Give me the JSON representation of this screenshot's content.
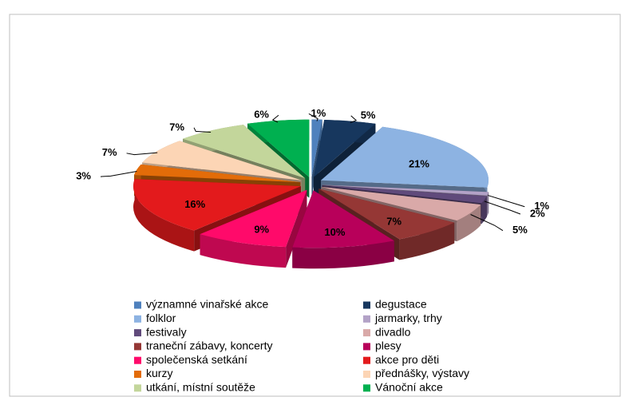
{
  "chart_data": {
    "type": "pie3d",
    "categories": [
      "významné vinařské akce",
      "degustace",
      "folklor",
      "jarmarky, trhy",
      "festivaly",
      "divadlo",
      "traneční zábavy, koncerty",
      "plesy",
      "společenská setkání",
      "akce pro děti",
      "kurzy",
      "přednášky, výstavy",
      "utkání, místní soutěže",
      "Vánoční akce"
    ],
    "values": [
      1,
      5,
      21,
      1,
      2,
      5,
      7,
      10,
      9,
      16,
      3,
      7,
      7,
      6
    ],
    "value_labels": [
      "1%",
      "5%",
      "21%",
      "1%",
      "2%",
      "5%",
      "7%",
      "10%",
      "9%",
      "16%",
      "3%",
      "7%",
      "7%",
      "6%"
    ],
    "colors": [
      "#4f81bd",
      "#17375e",
      "#8db3e2",
      "#b3a2c7",
      "#604a7b",
      "#d9a9a8",
      "#953735",
      "#b8005a",
      "#ff0a6a",
      "#e31a1c",
      "#e36c09",
      "#fcd5b5",
      "#c3d69b",
      "#00b050"
    ],
    "legend": "bottom"
  }
}
